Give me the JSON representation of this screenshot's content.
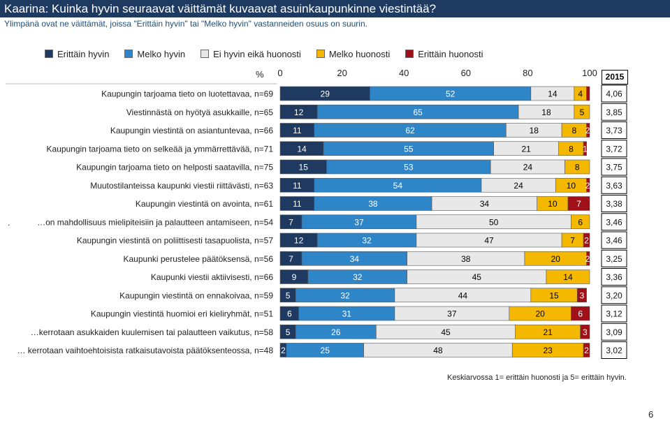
{
  "title": "Kaarina: Kuinka hyvin seuraavat väittämät kuvaavat asuinkaupunkinne viestintää?",
  "subtitle": "Ylimpänä ovat ne väittämät, joissa \"Erittäin hyvin\" tai \"Melko hyvin\" vastanneiden osuus on suurin.",
  "percent_sign": "%",
  "year_header": "2015",
  "footnote": "Keskiarvossa 1= erittäin huonosti ja 5= erittäin hyvin.",
  "page_number": "6",
  "stray_mark": ".",
  "chart_data": {
    "type": "stacked-bar-horizontal",
    "xlim": [
      0,
      100
    ],
    "x_ticks": [
      "0",
      "20",
      "40",
      "60",
      "80",
      "100"
    ],
    "legend": [
      {
        "label": "Erittäin hyvin",
        "color": "#1f3a60"
      },
      {
        "label": "Melko hyvin",
        "color": "#2e86c9"
      },
      {
        "label": "Ei hyvin eikä huonosti",
        "color": "#e8e8e8"
      },
      {
        "label": "Melko huonosti",
        "color": "#f5b800"
      },
      {
        "label": "Erittäin huonosti",
        "color": "#a01018"
      }
    ],
    "rows": [
      {
        "label": "Kaupungin tarjoama tieto on luotettavaa, n=69",
        "values": [
          29,
          52,
          14,
          4,
          1
        ],
        "labels": [
          "29",
          "52",
          "14",
          "4",
          ""
        ],
        "mean": "4,06"
      },
      {
        "label": "Viestinnästä on hyötyä asukkaille, n=65",
        "values": [
          12,
          65,
          18,
          5,
          1
        ],
        "labels": [
          "12",
          "65",
          "18",
          "5",
          ""
        ],
        "mean": "3,85"
      },
      {
        "label": "Kaupungin viestintä on asiantuntevaa, n=66",
        "values": [
          11,
          62,
          18,
          8,
          2
        ],
        "labels": [
          "11",
          "62",
          "18",
          "8",
          "2"
        ],
        "mean": "3,73"
      },
      {
        "label": "Kaupungin tarjoama tieto on selkeää ja ymmärrettävää, n=71",
        "values": [
          14,
          55,
          21,
          8,
          1
        ],
        "labels": [
          "14",
          "55",
          "21",
          "8",
          "1"
        ],
        "mean": "3,72"
      },
      {
        "label": "Kaupungin tarjoama tieto on helposti saatavilla, n=75",
        "values": [
          15,
          53,
          24,
          8,
          1
        ],
        "labels": [
          "15",
          "53",
          "24",
          "8",
          ""
        ],
        "mean": "3,75"
      },
      {
        "label": "Muutostilanteissa kaupunki viestii riittävästi, n=63",
        "values": [
          11,
          54,
          24,
          10,
          2
        ],
        "labels": [
          "11",
          "54",
          "24",
          "10",
          "2"
        ],
        "mean": "3,63"
      },
      {
        "label": "Kaupungin viestintä on avointa, n=61",
        "values": [
          11,
          38,
          34,
          10,
          7
        ],
        "labels": [
          "11",
          "38",
          "34",
          "10",
          "7"
        ],
        "mean": "3,38"
      },
      {
        "label": "…on mahdollisuus mielipiteisiin ja palautteen antamiseen, n=54",
        "values": [
          7,
          37,
          50,
          6,
          1
        ],
        "labels": [
          "7",
          "37",
          "50",
          "6",
          ""
        ],
        "mean": "3,46"
      },
      {
        "label": "Kaupungin viestintä on poliittisesti tasapuolista, n=57",
        "values": [
          12,
          32,
          47,
          7,
          2
        ],
        "labels": [
          "12",
          "32",
          "47",
          "7",
          "2"
        ],
        "mean": "3,46"
      },
      {
        "label": "Kaupunki perustelee päätöksensä, n=56",
        "values": [
          7,
          34,
          38,
          20,
          2
        ],
        "labels": [
          "7",
          "34",
          "38",
          "20",
          "2"
        ],
        "mean": "3,25"
      },
      {
        "label": "Kaupunki viestii aktiivisesti, n=66",
        "values": [
          9,
          32,
          45,
          14,
          1
        ],
        "labels": [
          "9",
          "32",
          "45",
          "14",
          ""
        ],
        "mean": "3,36"
      },
      {
        "label": "Kaupungin viestintä on ennakoivaa, n=59",
        "values": [
          5,
          32,
          44,
          15,
          3
        ],
        "labels": [
          "5",
          "32",
          "44",
          "15",
          "3"
        ],
        "mean": "3,20"
      },
      {
        "label": "Kaupungin viestintä huomioi eri kieliryhmät, n=51",
        "values": [
          6,
          31,
          37,
          20,
          6
        ],
        "labels": [
          "6",
          "31",
          "37",
          "20",
          "6"
        ],
        "mean": "3,12"
      },
      {
        "label": "…kerrotaan asukkaiden kuulemisen tai palautteen vaikutus, n=58",
        "values": [
          5,
          26,
          45,
          21,
          3
        ],
        "labels": [
          "5",
          "26",
          "45",
          "21",
          "3"
        ],
        "mean": "3,09"
      },
      {
        "label": "… kerrotaan vaihtoehtoisista ratkaisutavoista päätöksenteossa, n=48",
        "values": [
          2,
          25,
          48,
          23,
          2
        ],
        "labels": [
          "2",
          "25",
          "48",
          "23",
          "2"
        ],
        "mean": "3,02"
      }
    ]
  }
}
